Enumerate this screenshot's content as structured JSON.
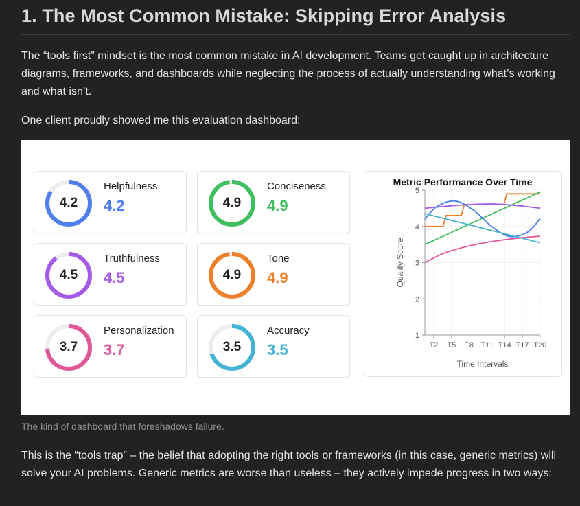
{
  "article": {
    "heading": "1. The Most Common Mistake: Skipping Error Analysis",
    "para1": "The “tools first” mindset is the most common mistake in AI development. Teams get caught up in architecture diagrams, frameworks, and dashboards while neglecting the process of actually understanding what’s working and what isn’t.",
    "para2": "One client proudly showed me this evaluation dashboard:",
    "caption": "The kind of dashboard that foreshadows failure.",
    "para3": "This is the “tools trap” – the belief that adopting the right tools or frameworks (in this case, generic metrics) will solve your AI problems. Generic metrics are worse than useless – they actively impede progress in two ways:"
  },
  "dashboard": {
    "metrics": [
      {
        "label": "Helpfulness",
        "value": "4.2",
        "score": 4.2,
        "color": "#4f7fee"
      },
      {
        "label": "Conciseness",
        "value": "4.9",
        "score": 4.9,
        "color": "#3fbf5f"
      },
      {
        "label": "Truthfulness",
        "value": "4.5",
        "score": 4.5,
        "color": "#a55be8"
      },
      {
        "label": "Tone",
        "value": "4.9",
        "score": 4.9,
        "color": "#f07f2a"
      },
      {
        "label": "Personalization",
        "value": "3.7",
        "score": 3.7,
        "color": "#e0579a"
      },
      {
        "label": "Accuracy",
        "value": "3.5",
        "score": 3.5,
        "color": "#44b3d4"
      }
    ]
  },
  "chart_data": {
    "type": "line",
    "title": "Metric Performance Over Time",
    "xlabel": "Time Intervals",
    "ylabel": "Quality Score",
    "x_ticks": [
      "T2",
      "T5",
      "T8",
      "T11",
      "T14",
      "T17",
      "T20"
    ],
    "y_ticks": [
      "1",
      "2",
      "3",
      "4",
      "5"
    ],
    "ylim": [
      1,
      5
    ],
    "xlim": [
      1,
      20
    ],
    "grid": true,
    "series": [
      {
        "color": "#f07f2a",
        "step": true,
        "points": [
          [
            1,
            4.0
          ],
          [
            4,
            4.0
          ],
          [
            4.5,
            4.3
          ],
          [
            7,
            4.3
          ],
          [
            7.5,
            4.6
          ],
          [
            14,
            4.6
          ],
          [
            14.5,
            4.9
          ],
          [
            20,
            4.9
          ]
        ]
      },
      {
        "color": "#3fbf5f",
        "points": [
          [
            1,
            3.5
          ],
          [
            20,
            4.95
          ]
        ]
      },
      {
        "color": "#a55be8",
        "points": [
          [
            1,
            4.5
          ],
          [
            4,
            4.55
          ],
          [
            8,
            4.6
          ],
          [
            12,
            4.62
          ],
          [
            16,
            4.58
          ],
          [
            20,
            4.5
          ]
        ]
      },
      {
        "color": "#4f7fee",
        "points": [
          [
            1,
            4.2
          ],
          [
            3,
            4.55
          ],
          [
            6,
            4.7
          ],
          [
            9,
            4.45
          ],
          [
            12,
            4.0
          ],
          [
            15,
            3.72
          ],
          [
            18,
            3.85
          ],
          [
            20,
            4.22
          ]
        ]
      },
      {
        "color": "#44b3d4",
        "points": [
          [
            1,
            4.35
          ],
          [
            7,
            4.1
          ],
          [
            14,
            3.8
          ],
          [
            20,
            3.55
          ]
        ]
      },
      {
        "color": "#e0579a",
        "points": [
          [
            1,
            3.0
          ],
          [
            4,
            3.25
          ],
          [
            8,
            3.45
          ],
          [
            12,
            3.58
          ],
          [
            16,
            3.67
          ],
          [
            20,
            3.73
          ]
        ]
      }
    ]
  }
}
